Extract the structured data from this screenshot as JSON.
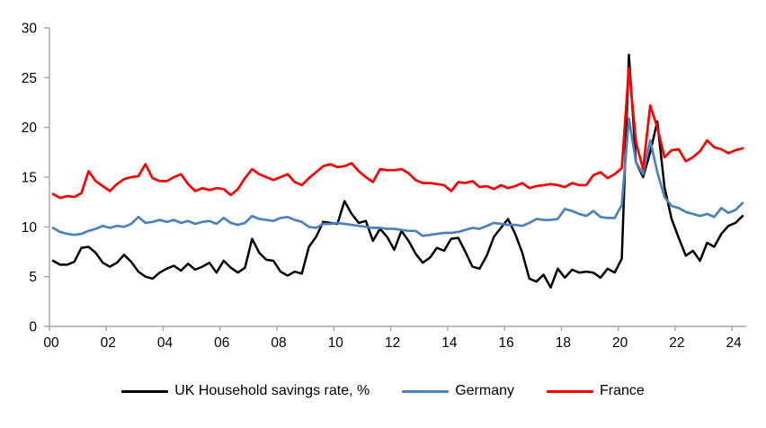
{
  "chart_data": {
    "type": "line",
    "title": "",
    "xlabel": "",
    "ylabel": "",
    "x_unit": "quarter",
    "x_start": "2000Q1",
    "x_end": "2024Q2",
    "x_tick_labels": [
      "00",
      "02",
      "04",
      "06",
      "08",
      "10",
      "12",
      "14",
      "16",
      "18",
      "20",
      "22",
      "24"
    ],
    "x_ticks_every_quarters": 8,
    "y_ticks": [
      0,
      5,
      10,
      15,
      20,
      25,
      30
    ],
    "ylim": [
      0,
      30
    ],
    "grid": "off",
    "legend_position": "bottom-center",
    "axis_color": "#a6a6a6",
    "series": [
      {
        "name": "UK Household savings rate, %",
        "color": "#000000",
        "values": [
          6.6,
          6.2,
          6.2,
          6.5,
          7.9,
          8.0,
          7.4,
          6.4,
          6.0,
          6.4,
          7.2,
          6.5,
          5.5,
          5.0,
          4.8,
          5.4,
          5.8,
          6.1,
          5.6,
          6.3,
          5.7,
          6.0,
          6.4,
          5.4,
          6.6,
          5.9,
          5.4,
          5.9,
          8.8,
          7.4,
          6.7,
          6.6,
          5.5,
          5.1,
          5.5,
          5.3,
          8.0,
          9.0,
          10.5,
          10.4,
          10.3,
          12.6,
          11.3,
          10.4,
          10.6,
          8.6,
          9.8,
          9.0,
          7.7,
          9.6,
          8.6,
          7.3,
          6.4,
          6.9,
          7.9,
          7.6,
          8.8,
          8.9,
          7.5,
          6.0,
          5.8,
          7.1,
          9.0,
          9.9,
          10.8,
          9.3,
          7.4,
          4.8,
          4.5,
          5.2,
          3.9,
          5.8,
          4.9,
          5.7,
          5.4,
          5.5,
          5.4,
          4.9,
          5.8,
          5.4,
          6.8,
          27.3,
          16.5,
          15.0,
          17.5,
          20.6,
          14.0,
          10.8,
          8.9,
          7.1,
          7.6,
          6.6,
          8.4,
          8.0,
          9.3,
          10.1,
          10.4,
          11.1
        ]
      },
      {
        "name": "Germany",
        "color": "#4b82be",
        "values": [
          9.9,
          9.5,
          9.3,
          9.2,
          9.3,
          9.6,
          9.8,
          10.1,
          9.9,
          10.1,
          10.0,
          10.3,
          11.0,
          10.4,
          10.5,
          10.7,
          10.5,
          10.7,
          10.4,
          10.6,
          10.3,
          10.5,
          10.6,
          10.3,
          10.9,
          10.4,
          10.2,
          10.4,
          11.1,
          10.8,
          10.7,
          10.6,
          10.9,
          11.0,
          10.7,
          10.5,
          10.0,
          9.9,
          10.3,
          10.3,
          10.4,
          10.3,
          10.2,
          10.1,
          10.0,
          9.9,
          9.9,
          9.8,
          9.8,
          9.7,
          9.6,
          9.6,
          9.1,
          9.2,
          9.3,
          9.4,
          9.4,
          9.5,
          9.7,
          9.9,
          9.8,
          10.1,
          10.4,
          10.3,
          10.2,
          10.2,
          10.1,
          10.4,
          10.8,
          10.7,
          10.7,
          10.8,
          11.8,
          11.6,
          11.3,
          11.1,
          11.6,
          11.0,
          10.9,
          10.9,
          12.2,
          20.9,
          16.5,
          15.3,
          18.7,
          15.5,
          13.0,
          12.1,
          11.9,
          11.5,
          11.3,
          11.1,
          11.3,
          11.0,
          11.9,
          11.4,
          11.7,
          12.4
        ]
      },
      {
        "name": "France",
        "color": "#fe0000",
        "values": [
          13.3,
          12.9,
          13.1,
          13.0,
          13.4,
          15.6,
          14.6,
          14.1,
          13.6,
          14.3,
          14.8,
          15.0,
          15.1,
          16.3,
          14.9,
          14.6,
          14.6,
          15.0,
          15.3,
          14.3,
          13.6,
          13.9,
          13.7,
          13.9,
          13.8,
          13.2,
          13.8,
          14.9,
          15.8,
          15.3,
          15.0,
          14.7,
          15.0,
          15.3,
          14.5,
          14.2,
          14.9,
          15.5,
          16.1,
          16.3,
          16.0,
          16.1,
          16.4,
          15.6,
          15.0,
          14.5,
          15.8,
          15.7,
          15.7,
          15.8,
          15.4,
          14.7,
          14.4,
          14.4,
          14.3,
          14.2,
          13.6,
          14.5,
          14.4,
          14.6,
          14.0,
          14.1,
          13.8,
          14.2,
          13.9,
          14.1,
          14.4,
          13.9,
          14.1,
          14.2,
          14.3,
          14.2,
          14.0,
          14.4,
          14.2,
          14.2,
          15.2,
          15.5,
          14.9,
          15.3,
          15.9,
          26.0,
          18.5,
          15.8,
          22.2,
          20.0,
          17.0,
          17.7,
          17.8,
          16.6,
          17.0,
          17.6,
          18.7,
          18.0,
          17.8,
          17.4,
          17.7,
          17.9
        ]
      }
    ]
  },
  "legend": {
    "item_count": 3
  }
}
